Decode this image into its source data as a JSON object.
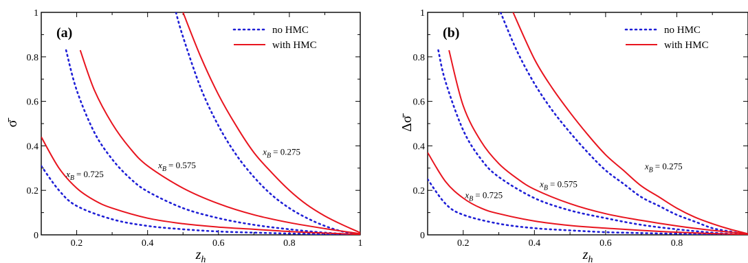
{
  "chart_data": [
    {
      "type": "line",
      "panel_label": "(a)",
      "xlabel": "z",
      "xlabel_sub": "h",
      "ylabel": "σ̄",
      "xlim": [
        0.1,
        1.0
      ],
      "ylim": [
        0,
        1
      ],
      "xticks": [
        0.2,
        0.4,
        0.6,
        0.8,
        1
      ],
      "xtick_labels": [
        "0.2",
        "0.4",
        "0.6",
        "0.8",
        "1"
      ],
      "yticks": [
        0,
        0.2,
        0.4,
        0.6,
        0.8,
        1
      ],
      "ytick_labels": [
        "0",
        "0.2",
        "0.4",
        "0.6",
        "0.8",
        "1"
      ],
      "legend": {
        "position": "top-right",
        "entries": [
          "no HMC",
          "with HMC"
        ]
      },
      "series": [
        {
          "name": "no HMC",
          "style": "dotted",
          "color": "#1f1fd6",
          "group": "x_B = 0.275",
          "x": [
            0.48,
            0.5,
            0.55,
            0.6,
            0.65,
            0.7,
            0.75,
            0.8,
            0.85,
            0.9,
            0.95,
            1.0
          ],
          "y": [
            1.0,
            0.89,
            0.66,
            0.49,
            0.36,
            0.26,
            0.18,
            0.12,
            0.075,
            0.04,
            0.015,
            0.0
          ]
        },
        {
          "name": "with HMC",
          "style": "solid",
          "color": "#e8141e",
          "group": "x_B = 0.275",
          "x": [
            0.5,
            0.55,
            0.6,
            0.65,
            0.7,
            0.75,
            0.8,
            0.85,
            0.9,
            0.95,
            1.0
          ],
          "y": [
            1.0,
            0.8,
            0.63,
            0.49,
            0.37,
            0.28,
            0.2,
            0.135,
            0.085,
            0.045,
            0.01
          ]
        },
        {
          "name": "no HMC",
          "style": "dotted",
          "color": "#1f1fd6",
          "group": "x_B = 0.575",
          "x": [
            0.17,
            0.2,
            0.25,
            0.3,
            0.35,
            0.4,
            0.5,
            0.6,
            0.7,
            0.8,
            0.9,
            1.0
          ],
          "y": [
            0.83,
            0.65,
            0.46,
            0.34,
            0.255,
            0.195,
            0.12,
            0.075,
            0.045,
            0.025,
            0.01,
            0.0
          ]
        },
        {
          "name": "with HMC",
          "style": "solid",
          "color": "#e8141e",
          "group": "x_B = 0.575",
          "x": [
            0.21,
            0.25,
            0.3,
            0.35,
            0.4,
            0.5,
            0.6,
            0.7,
            0.8,
            0.9,
            1.0
          ],
          "y": [
            0.83,
            0.65,
            0.5,
            0.39,
            0.31,
            0.21,
            0.14,
            0.09,
            0.055,
            0.028,
            0.005
          ]
        },
        {
          "name": "no HMC",
          "style": "dotted",
          "color": "#1f1fd6",
          "group": "x_B = 0.725",
          "x": [
            0.1,
            0.15,
            0.2,
            0.3,
            0.4,
            0.5,
            0.6,
            0.7,
            0.8,
            0.9,
            1.0
          ],
          "y": [
            0.31,
            0.2,
            0.13,
            0.07,
            0.04,
            0.025,
            0.015,
            0.01,
            0.006,
            0.003,
            0.0
          ]
        },
        {
          "name": "with HMC",
          "style": "solid",
          "color": "#e8141e",
          "group": "x_B = 0.725",
          "x": [
            0.1,
            0.15,
            0.2,
            0.25,
            0.3,
            0.4,
            0.5,
            0.6,
            0.7,
            0.8,
            0.9,
            1.0
          ],
          "y": [
            0.44,
            0.3,
            0.21,
            0.155,
            0.12,
            0.075,
            0.05,
            0.035,
            0.025,
            0.015,
            0.008,
            0.002
          ]
        }
      ],
      "annotations": [
        {
          "label": "x",
          "sub": "B",
          "value": "= 0.275",
          "x": 0.725,
          "y": 0.36
        },
        {
          "label": "x",
          "sub": "B",
          "value": "= 0.575",
          "x": 0.43,
          "y": 0.3
        },
        {
          "label": "x",
          "sub": "B",
          "value": "= 0.725",
          "x": 0.17,
          "y": 0.26
        }
      ]
    },
    {
      "type": "line",
      "panel_label": "(b)",
      "xlabel": "z",
      "xlabel_sub": "h",
      "ylabel": "Δσ̄",
      "xlim": [
        0.1,
        1.0
      ],
      "ylim": [
        0,
        1
      ],
      "xticks": [
        0.2,
        0.4,
        0.6,
        0.8
      ],
      "xtick_labels": [
        "0.2",
        "0.4",
        "0.6",
        "0.8"
      ],
      "yticks": [
        0,
        0.2,
        0.4,
        0.6,
        0.8,
        1
      ],
      "ytick_labels": [
        "0",
        "0.2",
        "0.4",
        "0.6",
        "0.8",
        "1"
      ],
      "legend": {
        "position": "top-right",
        "entries": [
          "no HMC",
          "with HMC"
        ]
      },
      "series": [
        {
          "name": "no HMC",
          "style": "dotted",
          "color": "#1f1fd6",
          "group": "x_B = 0.275",
          "x": [
            0.305,
            0.35,
            0.4,
            0.45,
            0.5,
            0.55,
            0.6,
            0.65,
            0.7,
            0.75,
            0.8,
            0.85,
            0.9,
            0.95,
            1.0
          ],
          "y": [
            1.0,
            0.83,
            0.68,
            0.56,
            0.46,
            0.37,
            0.29,
            0.23,
            0.17,
            0.13,
            0.09,
            0.06,
            0.03,
            0.015,
            0.0
          ]
        },
        {
          "name": "with HMC",
          "style": "solid",
          "color": "#e8141e",
          "group": "x_B = 0.275",
          "x": [
            0.34,
            0.4,
            0.45,
            0.5,
            0.55,
            0.6,
            0.65,
            0.7,
            0.75,
            0.8,
            0.85,
            0.9,
            0.95,
            1.0
          ],
          "y": [
            1.0,
            0.79,
            0.66,
            0.55,
            0.45,
            0.36,
            0.29,
            0.22,
            0.17,
            0.12,
            0.08,
            0.05,
            0.025,
            0.005
          ]
        },
        {
          "name": "no HMC",
          "style": "dotted",
          "color": "#1f1fd6",
          "group": "x_B = 0.575",
          "x": [
            0.13,
            0.15,
            0.2,
            0.25,
            0.3,
            0.4,
            0.5,
            0.6,
            0.7,
            0.8,
            0.9,
            1.0
          ],
          "y": [
            0.83,
            0.69,
            0.47,
            0.34,
            0.26,
            0.165,
            0.11,
            0.075,
            0.045,
            0.025,
            0.01,
            0.0
          ]
        },
        {
          "name": "with HMC",
          "style": "solid",
          "color": "#e8141e",
          "group": "x_B = 0.575",
          "x": [
            0.16,
            0.2,
            0.25,
            0.3,
            0.35,
            0.4,
            0.5,
            0.6,
            0.7,
            0.8,
            0.9,
            1.0
          ],
          "y": [
            0.83,
            0.58,
            0.42,
            0.32,
            0.255,
            0.205,
            0.14,
            0.095,
            0.065,
            0.04,
            0.02,
            0.005
          ]
        },
        {
          "name": "no HMC",
          "style": "dotted",
          "color": "#1f1fd6",
          "group": "x_B = 0.725",
          "x": [
            0.1,
            0.15,
            0.2,
            0.3,
            0.4,
            0.5,
            0.6,
            0.7,
            0.8,
            0.9,
            1.0
          ],
          "y": [
            0.25,
            0.14,
            0.09,
            0.05,
            0.03,
            0.02,
            0.012,
            0.008,
            0.005,
            0.002,
            0.0
          ]
        },
        {
          "name": "with HMC",
          "style": "solid",
          "color": "#e8141e",
          "group": "x_B = 0.725",
          "x": [
            0.1,
            0.15,
            0.2,
            0.25,
            0.3,
            0.4,
            0.5,
            0.6,
            0.7,
            0.8,
            0.9,
            1.0
          ],
          "y": [
            0.37,
            0.24,
            0.165,
            0.12,
            0.095,
            0.062,
            0.042,
            0.03,
            0.02,
            0.012,
            0.006,
            0.001
          ]
        }
      ],
      "annotations": [
        {
          "label": "x",
          "sub": "B",
          "value": "= 0.275",
          "x": 0.71,
          "y": 0.295
        },
        {
          "label": "x",
          "sub": "B",
          "value": "= 0.575",
          "x": 0.415,
          "y": 0.215
        },
        {
          "label": "x",
          "sub": "B",
          "value": "= 0.725",
          "x": 0.205,
          "y": 0.165
        }
      ]
    }
  ]
}
